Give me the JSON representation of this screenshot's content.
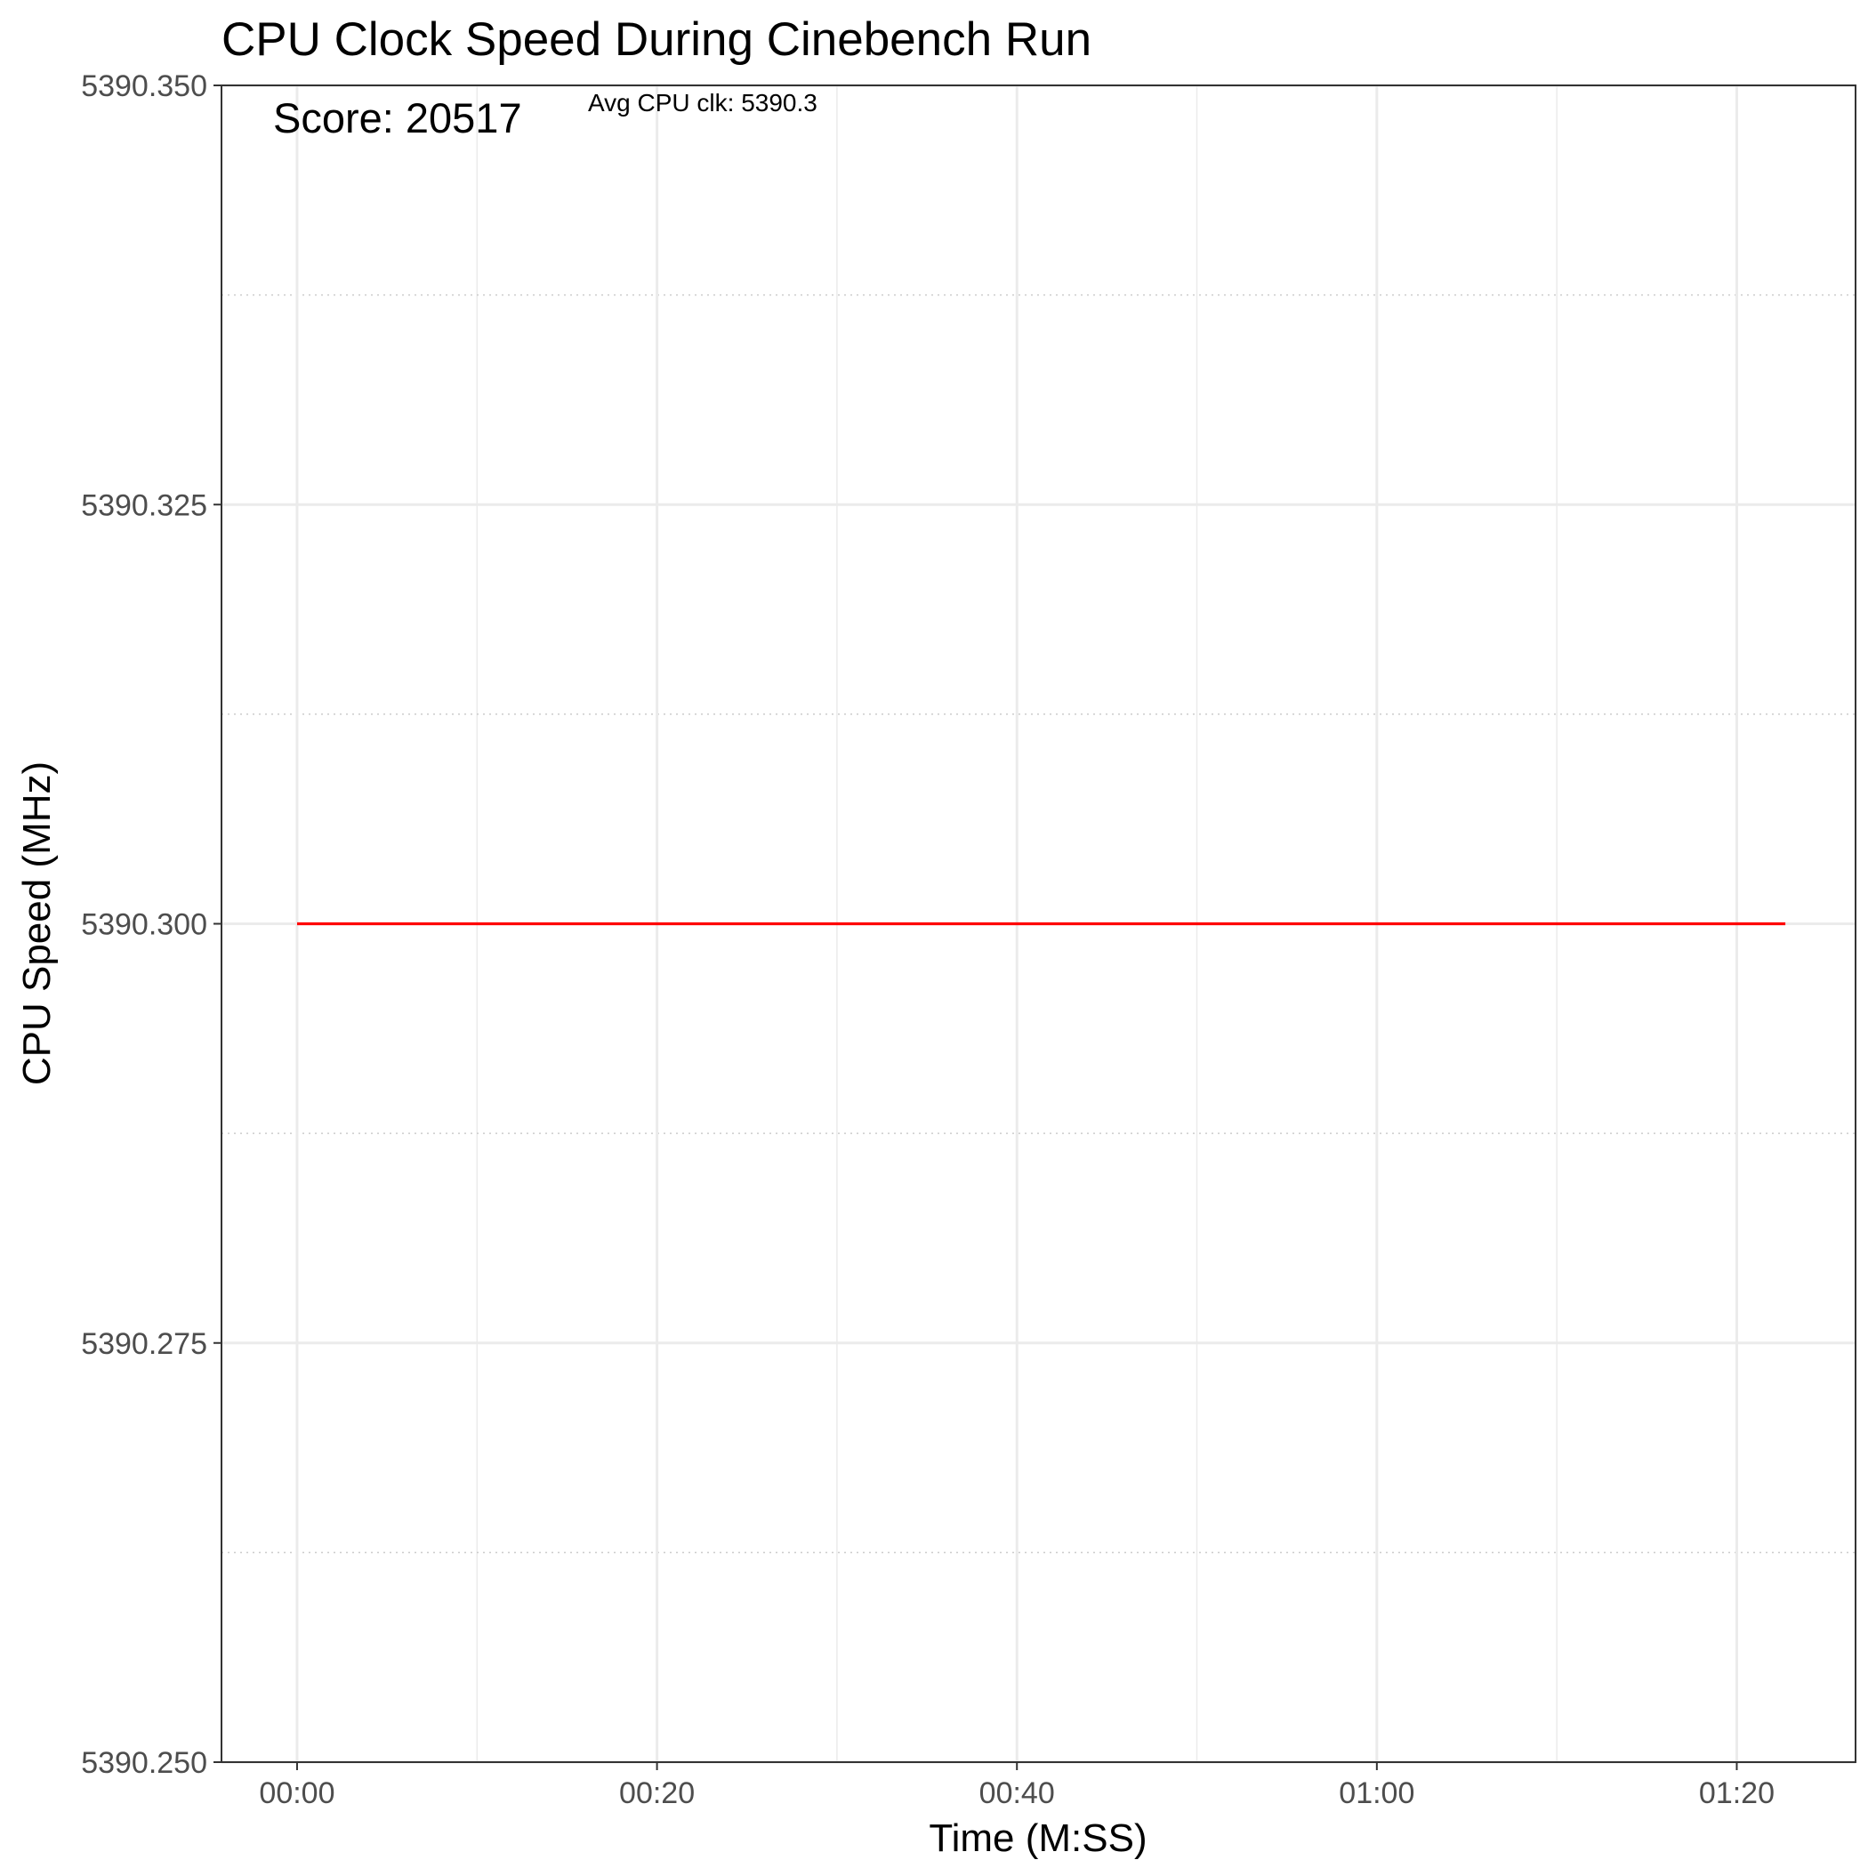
{
  "chart_data": {
    "type": "line",
    "title": "CPU Clock Speed During Cinebench Run",
    "xlabel": "Time (M:SS)",
    "ylabel": "CPU Speed (MHz)",
    "x_tick_values": [
      0,
      20,
      40,
      60,
      80
    ],
    "x_tick_labels": [
      "00:00",
      "00:20",
      "00:40",
      "01:00",
      "01:20"
    ],
    "y_tick_values": [
      5390.25,
      5390.275,
      5390.3,
      5390.325,
      5390.35
    ],
    "y_tick_labels": [
      "5390.250",
      "5390.275",
      "5390.300",
      "5390.325",
      "5390.350"
    ],
    "xlim": [
      -4.2,
      86.6
    ],
    "ylim": [
      5390.25,
      5390.35
    ],
    "grid": true,
    "series": [
      {
        "x": [
          0,
          82.7
        ],
        "y": [
          5390.3,
          5390.3
        ],
        "color": "#ff0000"
      }
    ],
    "annotations": {
      "score": "Score: 20517",
      "avg_clk": "Avg CPU clk: 5390.3"
    }
  }
}
